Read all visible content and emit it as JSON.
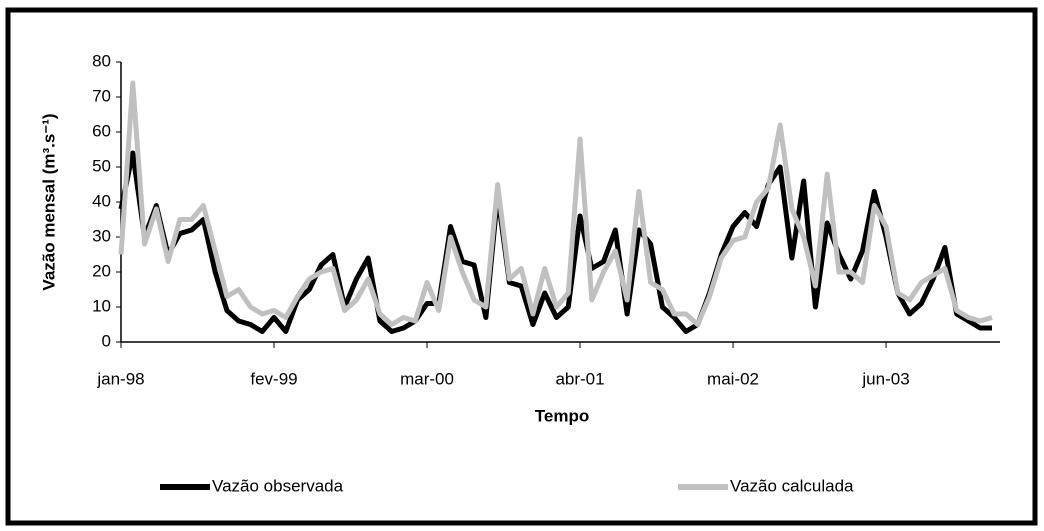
{
  "chart_data": {
    "type": "line",
    "x_label": "Tempo",
    "y_label": "Vazão  mensal (m³.s⁻¹)",
    "categories": [
      "jan-98",
      null,
      null,
      null,
      null,
      null,
      null,
      null,
      null,
      null,
      null,
      null,
      null,
      "fev-99",
      null,
      null,
      null,
      null,
      null,
      null,
      null,
      null,
      null,
      null,
      null,
      null,
      "mar-00",
      null,
      null,
      null,
      null,
      null,
      null,
      null,
      null,
      null,
      null,
      null,
      null,
      "abr-01",
      null,
      null,
      null,
      null,
      null,
      null,
      null,
      null,
      null,
      null,
      null,
      null,
      "mai-02",
      null,
      null,
      null,
      null,
      null,
      null,
      null,
      null,
      null,
      null,
      null,
      null,
      "jun-03",
      null,
      null,
      null,
      null,
      null,
      null,
      null,
      null,
      null
    ],
    "series": [
      {
        "name": "Vazão observada",
        "color": "#000000",
        "values": [
          38,
          54,
          30,
          39,
          25,
          31,
          32,
          35,
          20,
          9,
          6,
          5,
          3,
          7,
          3,
          12,
          15,
          22,
          25,
          10,
          18,
          24,
          6,
          3,
          4,
          6,
          11,
          11,
          33,
          23,
          22,
          7,
          42,
          17,
          16,
          5,
          14,
          7,
          10,
          36,
          21,
          23,
          32,
          8,
          32,
          28,
          10,
          7,
          3,
          5,
          14,
          25,
          33,
          37,
          33,
          45,
          50,
          24,
          46,
          10,
          34,
          25,
          18,
          26,
          43,
          30,
          14,
          8,
          11,
          18,
          27,
          8,
          6,
          4,
          4
        ]
      },
      {
        "name": "Vazão calculada",
        "color": "#c0c0c0",
        "values": [
          25,
          74,
          28,
          38,
          23,
          35,
          35,
          39,
          26,
          13,
          15,
          10,
          8,
          9,
          7,
          13,
          18,
          20,
          21,
          9,
          12,
          18,
          8,
          5,
          7,
          6,
          17,
          9,
          30,
          20,
          12,
          10,
          45,
          18,
          21,
          8,
          21,
          10,
          14,
          58,
          12,
          20,
          26,
          12,
          43,
          17,
          15,
          8,
          8,
          5,
          13,
          24,
          29,
          30,
          40,
          44,
          62,
          38,
          30,
          16,
          48,
          20,
          20,
          17,
          39,
          33,
          14,
          12,
          17,
          19,
          21,
          9,
          7,
          6,
          7
        ]
      }
    ],
    "ylim": [
      0,
      80
    ],
    "yticks": [
      0,
      10,
      20,
      30,
      40,
      50,
      60,
      70,
      80
    ],
    "grid": false,
    "legend": "bottom"
  }
}
